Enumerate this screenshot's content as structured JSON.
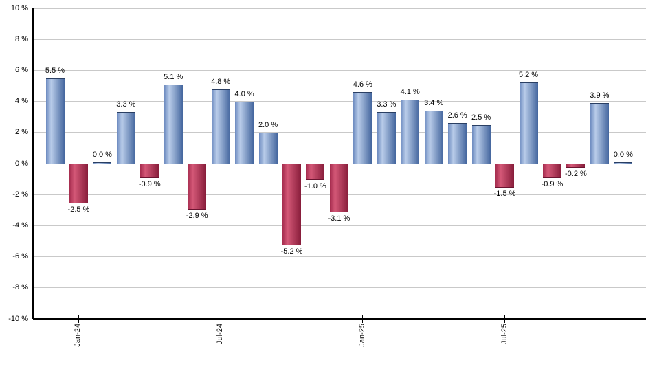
{
  "chart_data": {
    "type": "bar",
    "unit": "%",
    "values": [
      5.5,
      -2.5,
      0.0,
      3.3,
      -0.9,
      5.1,
      -2.9,
      4.8,
      4.0,
      2.0,
      -5.2,
      -1.0,
      -3.1,
      4.6,
      3.3,
      4.1,
      3.4,
      2.6,
      2.5,
      -1.5,
      5.2,
      -0.9,
      -0.2,
      3.9,
      0.0
    ],
    "bar_labels": [
      "5.5 %",
      "-2.5 %",
      "0.0 %",
      "3.3 %",
      "-0.9 %",
      "5.1 %",
      "-2.9 %",
      "4.8 %",
      "4.0 %",
      "2.0 %",
      "-5.2 %",
      "-1.0 %",
      "-3.1 %",
      "4.6 %",
      "3.3 %",
      "4.1 %",
      "3.4 %",
      "2.6 %",
      "2.5 %",
      "-1.5 %",
      "5.2 %",
      "-0.9 %",
      "-0.2 %",
      "3.9 %",
      "0.0 %"
    ],
    "x_ticks": [
      {
        "bar_index": 1,
        "label": "Jan-24"
      },
      {
        "bar_index": 7,
        "label": "Jul-24"
      },
      {
        "bar_index": 13,
        "label": "Jan-25"
      },
      {
        "bar_index": 19,
        "label": "Jul-25"
      }
    ],
    "y_ticks": [
      {
        "value": 10,
        "label": "10 %"
      },
      {
        "value": 8,
        "label": "8 %"
      },
      {
        "value": 6,
        "label": "6 %"
      },
      {
        "value": 4,
        "label": "4 %"
      },
      {
        "value": 2,
        "label": "2 %"
      },
      {
        "value": 0,
        "label": "0 %"
      },
      {
        "value": -2,
        "label": "-2 %"
      },
      {
        "value": -4,
        "label": "-4 %"
      },
      {
        "value": -6,
        "label": "-6 %"
      },
      {
        "value": -8,
        "label": "-8 %"
      },
      {
        "value": -10,
        "label": "-10 %"
      }
    ],
    "ylim": [
      -10,
      10
    ],
    "grid": true,
    "legend": false,
    "title": "",
    "xlabel": "",
    "ylabel": "",
    "colors": {
      "positive_gradient": [
        "#6d8bc0",
        "#b9cce9",
        "#44669e"
      ],
      "positive_cap": "#2a3f63",
      "negative_gradient": [
        "#a52c4e",
        "#d45877",
        "#871c3a"
      ],
      "negative_cap": "#6b1430",
      "gridline": "#c9c9c9",
      "axis": "#000000",
      "label_text": "#000000",
      "background": "#ffffff"
    }
  }
}
